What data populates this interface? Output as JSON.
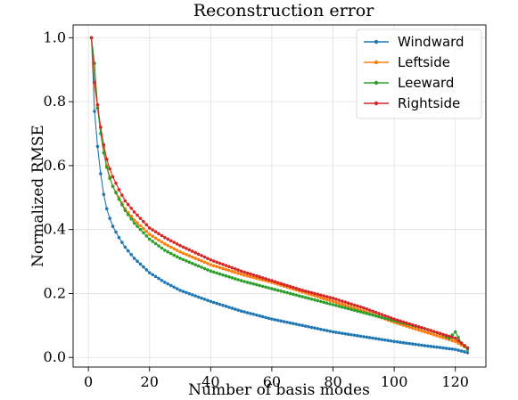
{
  "chart_data": {
    "type": "line",
    "title": "Reconstruction error",
    "xlabel": "Number of basis modes",
    "ylabel": "Normalized RMSE",
    "xlim": [
      -5,
      130
    ],
    "ylim": [
      -0.03,
      1.04
    ],
    "xticks": [
      0,
      20,
      40,
      60,
      80,
      100,
      120
    ],
    "yticks": [
      0.0,
      0.2,
      0.4,
      0.6,
      0.8,
      1.0
    ],
    "xtick_labels": [
      "0",
      "20",
      "40",
      "60",
      "80",
      "100",
      "120"
    ],
    "ytick_labels": [
      "0.0",
      "0.2",
      "0.4",
      "0.6",
      "0.8",
      "1.0"
    ],
    "grid": true,
    "legend_position": "top-right",
    "series": [
      {
        "name": "Windward",
        "color": "#1f77b4",
        "x": [
          1,
          2,
          3,
          4,
          5,
          6,
          7,
          8,
          10,
          12,
          15,
          20,
          25,
          30,
          40,
          50,
          60,
          70,
          80,
          90,
          100,
          110,
          120,
          124
        ],
        "y": [
          1.0,
          0.77,
          0.66,
          0.575,
          0.51,
          0.465,
          0.435,
          0.41,
          0.375,
          0.345,
          0.31,
          0.265,
          0.235,
          0.21,
          0.175,
          0.145,
          0.12,
          0.1,
          0.08,
          0.065,
          0.05,
          0.037,
          0.025,
          0.015
        ]
      },
      {
        "name": "Leftside",
        "color": "#ff7f0e",
        "x": [
          1,
          2,
          3,
          4,
          5,
          6,
          7,
          8,
          10,
          12,
          15,
          20,
          25,
          30,
          40,
          50,
          60,
          70,
          80,
          90,
          100,
          110,
          120,
          124
        ],
        "y": [
          1.0,
          0.85,
          0.78,
          0.72,
          0.66,
          0.6,
          0.565,
          0.535,
          0.5,
          0.465,
          0.43,
          0.385,
          0.355,
          0.33,
          0.29,
          0.26,
          0.235,
          0.205,
          0.175,
          0.145,
          0.11,
          0.08,
          0.05,
          0.028
        ]
      },
      {
        "name": "Leeward",
        "color": "#2ca02c",
        "x": [
          1,
          2,
          3,
          4,
          5,
          6,
          7,
          8,
          10,
          12,
          15,
          20,
          25,
          30,
          40,
          50,
          60,
          70,
          80,
          90,
          100,
          110,
          115,
          118,
          120,
          122,
          124
        ],
        "y": [
          1.0,
          0.92,
          0.78,
          0.7,
          0.64,
          0.595,
          0.56,
          0.535,
          0.495,
          0.46,
          0.42,
          0.37,
          0.335,
          0.31,
          0.27,
          0.24,
          0.215,
          0.19,
          0.165,
          0.14,
          0.115,
          0.09,
          0.075,
          0.06,
          0.08,
          0.045,
          0.025
        ]
      },
      {
        "name": "Rightside",
        "color": "#d62728",
        "x": [
          1,
          2,
          3,
          4,
          5,
          6,
          7,
          8,
          10,
          12,
          15,
          20,
          25,
          30,
          40,
          50,
          60,
          70,
          80,
          90,
          100,
          110,
          120,
          124
        ],
        "y": [
          1.0,
          0.86,
          0.79,
          0.72,
          0.665,
          0.62,
          0.59,
          0.565,
          0.525,
          0.49,
          0.455,
          0.405,
          0.375,
          0.35,
          0.305,
          0.27,
          0.24,
          0.21,
          0.185,
          0.155,
          0.12,
          0.09,
          0.06,
          0.03
        ]
      }
    ]
  }
}
